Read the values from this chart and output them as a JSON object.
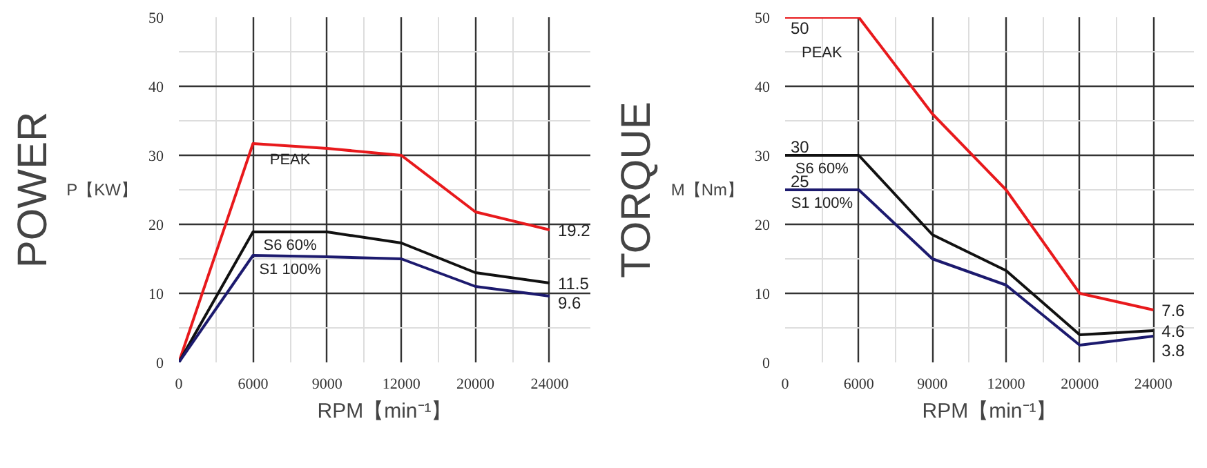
{
  "chart_data": [
    {
      "type": "line",
      "title": "POWER",
      "ylabel": "P【KW】",
      "xlabel": "RPM【min⁻¹】",
      "categories": [
        "0",
        "6000",
        "9000",
        "12000",
        "20000",
        "24000"
      ],
      "series": [
        {
          "name": "PEAK",
          "color": "#e8191c",
          "values": [
            0,
            31.7,
            31,
            30,
            21.8,
            19.2
          ],
          "value_labels": [
            null,
            null,
            null,
            null,
            null,
            "19.2"
          ]
        },
        {
          "name": "S6 60%",
          "color": "#111111",
          "values": [
            0,
            18.9,
            18.9,
            17.3,
            13,
            11.5
          ],
          "value_labels": [
            null,
            null,
            null,
            null,
            null,
            "11.5"
          ]
        },
        {
          "name": "S1 100%",
          "color": "#1c1a6e",
          "values": [
            0,
            15.5,
            15.3,
            15,
            11,
            9.6
          ],
          "value_labels": [
            null,
            null,
            null,
            null,
            null,
            "9.6"
          ]
        }
      ],
      "ylim": [
        0,
        50
      ],
      "yticks": [
        0,
        10,
        20,
        30,
        40,
        50
      ],
      "grid": true,
      "legend": false,
      "marker": "none",
      "line_style": "solid"
    },
    {
      "type": "line",
      "title": "TORQUE",
      "ylabel": "M【Nm】",
      "xlabel": "RPM【min⁻¹】",
      "categories": [
        "0",
        "6000",
        "9000",
        "12000",
        "20000",
        "24000"
      ],
      "series": [
        {
          "name": "PEAK",
          "color": "#e8191c",
          "values": [
            50,
            50,
            36,
            25,
            10,
            7.6
          ],
          "value_labels": [
            "50",
            null,
            null,
            null,
            null,
            "7.6"
          ]
        },
        {
          "name": "S6 60%",
          "color": "#111111",
          "values": [
            30,
            30,
            18.5,
            13.3,
            4,
            4.6
          ],
          "value_labels": [
            "30",
            null,
            null,
            null,
            null,
            "4.6"
          ]
        },
        {
          "name": "S1 100%",
          "color": "#1c1a6e",
          "values": [
            25,
            25,
            15,
            11.2,
            2.5,
            3.8
          ],
          "value_labels": [
            "25",
            null,
            null,
            null,
            null,
            "3.8"
          ]
        }
      ],
      "ylim": [
        0,
        50
      ],
      "yticks": [
        0,
        10,
        20,
        30,
        40,
        50
      ],
      "grid": true,
      "legend": false,
      "marker": "none",
      "line_style": "solid"
    }
  ]
}
